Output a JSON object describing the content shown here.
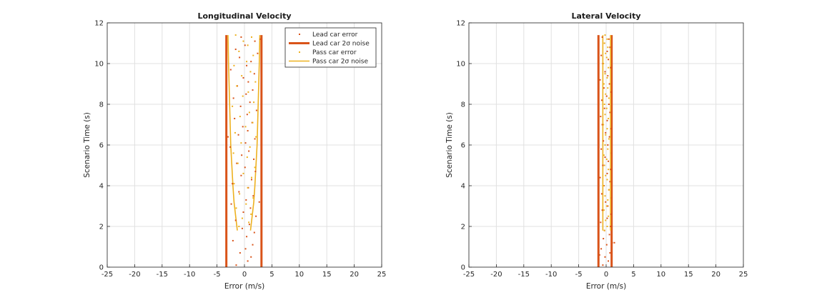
{
  "colors": {
    "lead": "#d95319",
    "pass": "#edb120",
    "grid": "#e0e0e0",
    "axis": "#262626",
    "background": "#ffffff"
  },
  "chart_data": [
    {
      "type": "scatter",
      "title": "Longitudinal Velocity",
      "xlabel": "Error (m/s)",
      "ylabel": "Scenario Time (s)",
      "xlim": [
        -25,
        25
      ],
      "ylim": [
        0,
        12
      ],
      "xticks": [
        -25,
        -20,
        -15,
        -10,
        -5,
        0,
        5,
        10,
        15,
        20,
        25
      ],
      "yticks": [
        0,
        2,
        4,
        6,
        8,
        10,
        12
      ],
      "grid": true,
      "legend_position": "top-right",
      "legend": [
        {
          "label": "Lead car error",
          "kind": "marker",
          "series": "lead"
        },
        {
          "label": "Lead car 2σ noise",
          "kind": "line",
          "series": "lead"
        },
        {
          "label": "Pass car error",
          "kind": "marker",
          "series": "pass"
        },
        {
          "label": "Pass car 2σ noise",
          "kind": "line",
          "series": "pass"
        }
      ],
      "series": [
        {
          "name": "Lead car error",
          "kind": "scatter",
          "color": "#d95319",
          "points": [
            [
              -1.5,
              0.1
            ],
            [
              0.6,
              0.3
            ],
            [
              1.2,
              0.5
            ],
            [
              -0.8,
              0.7
            ],
            [
              0.2,
              0.9
            ],
            [
              1.5,
              1.1
            ],
            [
              -2.1,
              1.3
            ],
            [
              0.4,
              1.5
            ],
            [
              1.8,
              1.7
            ],
            [
              -0.4,
              1.9
            ],
            [
              0.9,
              2.1
            ],
            [
              -1.6,
              2.3
            ],
            [
              2.1,
              2.5
            ],
            [
              -0.2,
              2.7
            ],
            [
              1.1,
              2.9
            ],
            [
              -2.4,
              3.1
            ],
            [
              0.3,
              3.3
            ],
            [
              1.6,
              3.5
            ],
            [
              -1.0,
              3.7
            ],
            [
              0.7,
              3.9
            ],
            [
              -2.2,
              4.1
            ],
            [
              1.3,
              4.3
            ],
            [
              -0.6,
              4.5
            ],
            [
              2.0,
              4.7
            ],
            [
              0.1,
              4.9
            ],
            [
              -1.4,
              5.1
            ],
            [
              1.7,
              5.3
            ],
            [
              -0.5,
              5.5
            ],
            [
              0.8,
              5.7
            ],
            [
              -2.6,
              5.9
            ],
            [
              0.2,
              6.1
            ],
            [
              1.9,
              6.3
            ],
            [
              -1.1,
              6.5
            ],
            [
              0.6,
              6.7
            ],
            [
              -0.3,
              6.9
            ],
            [
              1.4,
              7.1
            ],
            [
              -1.8,
              7.3
            ],
            [
              0.5,
              7.5
            ],
            [
              2.2,
              7.7
            ],
            [
              -0.7,
              7.9
            ],
            [
              1.0,
              8.1
            ],
            [
              -2.0,
              8.3
            ],
            [
              0.3,
              8.5
            ],
            [
              1.5,
              8.7
            ],
            [
              -1.3,
              8.9
            ],
            [
              0.7,
              9.1
            ],
            [
              -0.2,
              9.3
            ],
            [
              1.8,
              9.5
            ],
            [
              -2.5,
              9.7
            ],
            [
              0.4,
              9.9
            ],
            [
              1.2,
              10.1
            ],
            [
              -0.9,
              10.3
            ],
            [
              2.4,
              10.5
            ],
            [
              -1.6,
              10.7
            ],
            [
              0.1,
              10.9
            ],
            [
              1.9,
              11.1
            ],
            [
              -0.6,
              11.3
            ],
            [
              2.9,
              11.2
            ],
            [
              -3.0,
              6.4
            ],
            [
              2.7,
              3.2
            ]
          ]
        },
        {
          "name": "Lead car 2σ noise",
          "kind": "line",
          "color": "#d95319",
          "lines": [
            [
              [
                -3.3,
                0
              ],
              [
                -3.3,
                11.4
              ]
            ],
            [
              [
                3.1,
                0
              ],
              [
                3.1,
                11.4
              ]
            ]
          ]
        },
        {
          "name": "Pass car error",
          "kind": "scatter",
          "color": "#edb120",
          "points": [
            [
              -1.0,
              2.0
            ],
            [
              0.8,
              2.2
            ],
            [
              -0.4,
              2.4
            ],
            [
              1.2,
              2.6
            ],
            [
              -1.5,
              2.9
            ],
            [
              0.3,
              3.1
            ],
            [
              1.6,
              3.4
            ],
            [
              -0.9,
              3.6
            ],
            [
              0.6,
              3.9
            ],
            [
              -1.9,
              4.1
            ],
            [
              1.3,
              4.4
            ],
            [
              -0.2,
              4.6
            ],
            [
              1.9,
              4.9
            ],
            [
              -1.2,
              5.1
            ],
            [
              0.5,
              5.4
            ],
            [
              -2.0,
              5.6
            ],
            [
              1.0,
              5.9
            ],
            [
              -0.6,
              6.1
            ],
            [
              2.1,
              6.4
            ],
            [
              -1.7,
              6.6
            ],
            [
              0.2,
              6.9
            ],
            [
              1.5,
              7.1
            ],
            [
              -0.8,
              7.4
            ],
            [
              0.9,
              7.6
            ],
            [
              -2.2,
              7.9
            ],
            [
              1.7,
              8.1
            ],
            [
              -0.3,
              8.4
            ],
            [
              0.7,
              8.6
            ],
            [
              -1.4,
              8.9
            ],
            [
              2.0,
              9.1
            ],
            [
              -0.5,
              9.4
            ],
            [
              1.1,
              9.6
            ],
            [
              -1.9,
              9.9
            ],
            [
              0.4,
              10.1
            ],
            [
              1.6,
              10.4
            ],
            [
              -1.0,
              10.6
            ],
            [
              0.6,
              10.9
            ],
            [
              -0.2,
              11.1
            ],
            [
              1.3,
              11.3
            ],
            [
              -1.6,
              11.4
            ]
          ]
        },
        {
          "name": "Pass car 2σ noise",
          "kind": "line",
          "color": "#edb120",
          "lines": [
            [
              [
                -1.3,
                1.8
              ],
              [
                -1.6,
                2.5
              ],
              [
                -1.9,
                3.2
              ],
              [
                -2.1,
                4.0
              ],
              [
                -2.3,
                5.0
              ],
              [
                -2.5,
                6.0
              ],
              [
                -2.6,
                7.0
              ],
              [
                -2.7,
                8.0
              ],
              [
                -2.8,
                9.0
              ],
              [
                -2.9,
                10.0
              ],
              [
                -3.0,
                11.4
              ]
            ],
            [
              [
                1.1,
                1.8
              ],
              [
                1.4,
                2.5
              ],
              [
                1.7,
                3.2
              ],
              [
                1.9,
                4.0
              ],
              [
                2.1,
                5.0
              ],
              [
                2.3,
                6.0
              ],
              [
                2.4,
                7.0
              ],
              [
                2.5,
                8.0
              ],
              [
                2.6,
                9.0
              ],
              [
                2.7,
                10.0
              ],
              [
                2.8,
                11.4
              ]
            ]
          ]
        }
      ]
    },
    {
      "type": "scatter",
      "title": "Lateral Velocity",
      "xlabel": "Error (m/s)",
      "ylabel": "Scenario Time (s)",
      "xlim": [
        -25,
        25
      ],
      "ylim": [
        0,
        12
      ],
      "xticks": [
        -25,
        -20,
        -15,
        -10,
        -5,
        0,
        5,
        10,
        15,
        20,
        25
      ],
      "yticks": [
        0,
        2,
        4,
        6,
        8,
        10,
        12
      ],
      "grid": true,
      "legend": [],
      "series": [
        {
          "name": "Lead car error",
          "kind": "scatter",
          "color": "#d95319",
          "points": [
            [
              -0.6,
              0.1
            ],
            [
              0.4,
              0.3
            ],
            [
              -0.2,
              0.5
            ],
            [
              0.7,
              0.7
            ],
            [
              -0.9,
              0.9
            ],
            [
              0.1,
              1.1
            ],
            [
              1.1,
              1.2
            ],
            [
              -0.5,
              1.4
            ],
            [
              0.6,
              1.6
            ],
            [
              -0.3,
              1.8
            ],
            [
              0.8,
              2.0
            ],
            [
              -1.0,
              2.2
            ],
            [
              0.2,
              2.4
            ],
            [
              0.9,
              2.6
            ],
            [
              -0.7,
              2.8
            ],
            [
              0.3,
              3.0
            ],
            [
              -0.1,
              3.2
            ],
            [
              1.0,
              3.4
            ],
            [
              -0.8,
              3.6
            ],
            [
              0.5,
              3.8
            ],
            [
              -0.4,
              4.0
            ],
            [
              0.7,
              4.2
            ],
            [
              -1.1,
              4.4
            ],
            [
              0.2,
              4.6
            ],
            [
              0.8,
              4.8
            ],
            [
              -0.6,
              5.0
            ],
            [
              0.4,
              5.2
            ],
            [
              -0.2,
              5.4
            ],
            [
              1.0,
              5.6
            ],
            [
              -0.9,
              5.8
            ],
            [
              0.3,
              6.0
            ],
            [
              -0.5,
              6.2
            ],
            [
              0.6,
              6.4
            ],
            [
              -0.1,
              6.6
            ],
            [
              0.9,
              6.8
            ],
            [
              -0.7,
              7.0
            ],
            [
              0.2,
              7.2
            ],
            [
              -1.0,
              7.4
            ],
            [
              0.7,
              7.6
            ],
            [
              -0.3,
              7.8
            ],
            [
              0.5,
              8.0
            ],
            [
              -0.8,
              8.2
            ],
            [
              0.1,
              8.4
            ],
            [
              0.9,
              8.6
            ],
            [
              -0.4,
              8.8
            ],
            [
              0.6,
              9.0
            ],
            [
              -1.1,
              9.2
            ],
            [
              0.3,
              9.4
            ],
            [
              -0.2,
              9.6
            ],
            [
              0.8,
              9.8
            ],
            [
              -0.6,
              10.0
            ],
            [
              0.4,
              10.2
            ],
            [
              -0.9,
              10.4
            ],
            [
              0.2,
              10.6
            ],
            [
              0.7,
              10.8
            ],
            [
              -0.3,
              11.0
            ],
            [
              0.5,
              11.2
            ],
            [
              -0.7,
              11.3
            ],
            [
              1.5,
              1.2
            ],
            [
              -1.2,
              0.6
            ]
          ]
        },
        {
          "name": "Lead car 2σ noise",
          "kind": "line",
          "color": "#d95319",
          "lines": [
            [
              [
                -1.4,
                0
              ],
              [
                -1.4,
                11.4
              ]
            ],
            [
              [
                1.0,
                0
              ],
              [
                1.0,
                11.4
              ]
            ]
          ]
        },
        {
          "name": "Pass car error",
          "kind": "scatter",
          "color": "#edb120",
          "points": [
            [
              -0.3,
              1.8
            ],
            [
              0.2,
              2.0
            ],
            [
              -0.1,
              2.3
            ],
            [
              0.4,
              2.5
            ],
            [
              -0.4,
              2.8
            ],
            [
              0.1,
              3.0
            ],
            [
              0.3,
              3.3
            ],
            [
              -0.2,
              3.5
            ],
            [
              0.5,
              3.8
            ],
            [
              -0.5,
              4.0
            ],
            [
              0.2,
              4.3
            ],
            [
              -0.1,
              4.5
            ],
            [
              0.4,
              4.8
            ],
            [
              -0.3,
              5.0
            ],
            [
              0.1,
              5.3
            ],
            [
              -0.4,
              5.5
            ],
            [
              0.3,
              5.8
            ],
            [
              -0.2,
              6.0
            ],
            [
              0.5,
              6.3
            ],
            [
              -0.1,
              6.5
            ],
            [
              0.2,
              6.8
            ],
            [
              -0.5,
              7.0
            ],
            [
              0.4,
              7.3
            ],
            [
              -0.2,
              7.5
            ],
            [
              0.1,
              7.8
            ],
            [
              -0.3,
              8.0
            ],
            [
              0.5,
              8.3
            ],
            [
              -0.1,
              8.5
            ],
            [
              0.3,
              8.8
            ],
            [
              -0.4,
              9.0
            ],
            [
              0.2,
              9.3
            ],
            [
              -0.2,
              9.5
            ],
            [
              0.4,
              9.8
            ],
            [
              -0.5,
              10.0
            ],
            [
              0.1,
              10.3
            ],
            [
              -0.1,
              10.5
            ],
            [
              0.3,
              10.8
            ],
            [
              -0.3,
              11.0
            ],
            [
              0.2,
              11.2
            ],
            [
              -0.2,
              11.4
            ]
          ]
        },
        {
          "name": "Pass car 2σ noise",
          "kind": "line",
          "color": "#edb120",
          "lines": [
            [
              [
                -0.6,
                1.8
              ],
              [
                -0.6,
                11.4
              ]
            ],
            [
              [
                0.8,
                1.8
              ],
              [
                0.8,
                11.4
              ]
            ]
          ]
        }
      ]
    }
  ]
}
